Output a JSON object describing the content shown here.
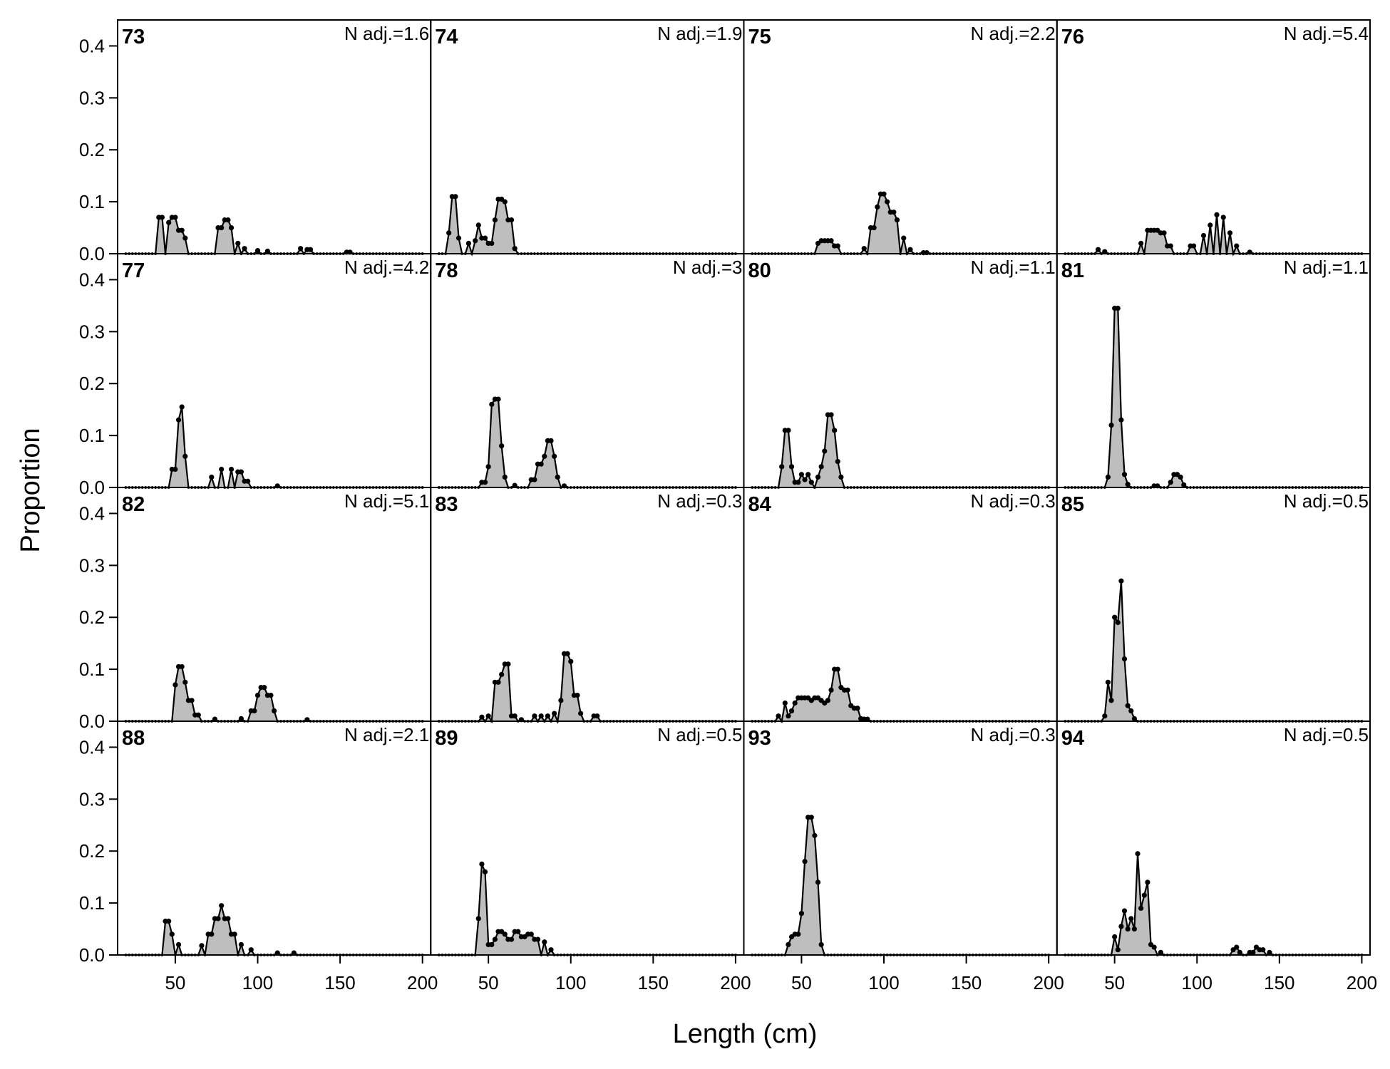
{
  "chart_data": {
    "type": "area",
    "xlabel": "Length (cm)",
    "ylabel": "Proportion",
    "xlim": [
      15,
      205
    ],
    "ylim": [
      0,
      0.45
    ],
    "x_ticks": [
      50,
      100,
      150,
      200
    ],
    "y_ticks": [
      0.0,
      0.1,
      0.2,
      0.3,
      0.4
    ],
    "x_tick_labels": [
      "50",
      "100",
      "150",
      "200"
    ],
    "y_tick_labels": [
      "0.0",
      "0.1",
      "0.2",
      "0.3",
      "0.4"
    ],
    "grid": false,
    "legend": "none",
    "fill_color": "#bebebe",
    "line_color": "#000000",
    "x_range": [
      20,
      200
    ],
    "bin_width": 2,
    "layout": {
      "rows": 4,
      "cols": 4
    },
    "panels": [
      {
        "label": "73",
        "n_adj": "N adj.=1.6",
        "peaks": [
          [
            41,
            0.07
          ],
          [
            46,
            0.06
          ],
          [
            49,
            0.07
          ],
          [
            53,
            0.045
          ],
          [
            55,
            0.03
          ],
          [
            77,
            0.05
          ],
          [
            81,
            0.065
          ],
          [
            84,
            0.05
          ],
          [
            88,
            0.02
          ],
          [
            92,
            0.01
          ],
          [
            100,
            0.006
          ],
          [
            106,
            0.005
          ],
          [
            126,
            0.01
          ],
          [
            131,
            0.008
          ],
          [
            155,
            0.003
          ]
        ]
      },
      {
        "label": "77",
        "n_adj": "N adj.=4.2",
        "peaks": [
          [
            49,
            0.035
          ],
          [
            52,
            0.13
          ],
          [
            54,
            0.155
          ],
          [
            56,
            0.06
          ],
          [
            72,
            0.02
          ],
          [
            78,
            0.035
          ],
          [
            84,
            0.035
          ],
          [
            89,
            0.03
          ],
          [
            93,
            0.012
          ],
          [
            112,
            0.003
          ]
        ]
      },
      {
        "label": "82",
        "n_adj": "N adj.=5.1",
        "peaks": [
          [
            50,
            0.07
          ],
          [
            53,
            0.105
          ],
          [
            56,
            0.075
          ],
          [
            59,
            0.04
          ],
          [
            63,
            0.012
          ],
          [
            74,
            0.004
          ],
          [
            90,
            0.005
          ],
          [
            97,
            0.02
          ],
          [
            100,
            0.05
          ],
          [
            103,
            0.065
          ],
          [
            107,
            0.05
          ],
          [
            110,
            0.02
          ],
          [
            130,
            0.003
          ]
        ]
      },
      {
        "label": "88",
        "n_adj": "N adj.=2.1",
        "peaks": [
          [
            45,
            0.065
          ],
          [
            48,
            0.04
          ],
          [
            52,
            0.02
          ],
          [
            66,
            0.018
          ],
          [
            71,
            0.04
          ],
          [
            75,
            0.07
          ],
          [
            78,
            0.095
          ],
          [
            81,
            0.07
          ],
          [
            85,
            0.04
          ],
          [
            90,
            0.02
          ],
          [
            96,
            0.01
          ],
          [
            112,
            0.004
          ],
          [
            122,
            0.004
          ]
        ]
      },
      {
        "label": "74",
        "n_adj": "N adj.=1.9",
        "peaks": [
          [
            27,
            0.04
          ],
          [
            29,
            0.11
          ],
          [
            31,
            0.03
          ],
          [
            38,
            0.02
          ],
          [
            42,
            0.025
          ],
          [
            44,
            0.055
          ],
          [
            47,
            0.03
          ],
          [
            51,
            0.02
          ],
          [
            54,
            0.065
          ],
          [
            57,
            0.105
          ],
          [
            60,
            0.1
          ],
          [
            63,
            0.065
          ],
          [
            66,
            0.01
          ]
        ]
      },
      {
        "label": "78",
        "n_adj": "N adj.=3",
        "peaks": [
          [
            47,
            0.01
          ],
          [
            50,
            0.04
          ],
          [
            53,
            0.16
          ],
          [
            55,
            0.17
          ],
          [
            57,
            0.08
          ],
          [
            60,
            0.02
          ],
          [
            66,
            0.004
          ],
          [
            77,
            0.015
          ],
          [
            81,
            0.045
          ],
          [
            84,
            0.06
          ],
          [
            87,
            0.09
          ],
          [
            89,
            0.06
          ],
          [
            92,
            0.02
          ],
          [
            96,
            0.003
          ]
        ]
      },
      {
        "label": "83",
        "n_adj": "N adj.=0.3",
        "peaks": [
          [
            46,
            0.008
          ],
          [
            50,
            0.01
          ],
          [
            55,
            0.075
          ],
          [
            57,
            0.07
          ],
          [
            59,
            0.09
          ],
          [
            61,
            0.11
          ],
          [
            65,
            0.01
          ],
          [
            70,
            0.003
          ],
          [
            78,
            0.01
          ],
          [
            82,
            0.01
          ],
          [
            86,
            0.01
          ],
          [
            90,
            0.015
          ],
          [
            94,
            0.04
          ],
          [
            97,
            0.13
          ],
          [
            100,
            0.115
          ],
          [
            103,
            0.05
          ],
          [
            106,
            0.015
          ],
          [
            115,
            0.01
          ]
        ]
      },
      {
        "label": "89",
        "n_adj": "N adj.=0.5",
        "peaks": [
          [
            44,
            0.07
          ],
          [
            46,
            0.175
          ],
          [
            48,
            0.16
          ],
          [
            51,
            0.02
          ],
          [
            54,
            0.03
          ],
          [
            57,
            0.045
          ],
          [
            60,
            0.04
          ],
          [
            63,
            0.03
          ],
          [
            67,
            0.045
          ],
          [
            71,
            0.035
          ],
          [
            75,
            0.04
          ],
          [
            79,
            0.03
          ],
          [
            84,
            0.025
          ],
          [
            88,
            0.01
          ]
        ]
      },
      {
        "label": "75",
        "n_adj": "N adj.=2.2",
        "peaks": [
          [
            60,
            0.02
          ],
          [
            63,
            0.025
          ],
          [
            67,
            0.025
          ],
          [
            71,
            0.015
          ],
          [
            88,
            0.01
          ],
          [
            93,
            0.05
          ],
          [
            96,
            0.09
          ],
          [
            99,
            0.115
          ],
          [
            102,
            0.1
          ],
          [
            105,
            0.08
          ],
          [
            108,
            0.065
          ],
          [
            112,
            0.03
          ],
          [
            116,
            0.008
          ],
          [
            125,
            0.002
          ]
        ]
      },
      {
        "label": "80",
        "n_adj": "N adj.=1.1",
        "peaks": [
          [
            38,
            0.04
          ],
          [
            40,
            0.11
          ],
          [
            42,
            0.11
          ],
          [
            44,
            0.04
          ],
          [
            47,
            0.01
          ],
          [
            50,
            0.025
          ],
          [
            52,
            0.015
          ],
          [
            54,
            0.025
          ],
          [
            56,
            0.01
          ],
          [
            61,
            0.02
          ],
          [
            63,
            0.04
          ],
          [
            65,
            0.07
          ],
          [
            67,
            0.14
          ],
          [
            69,
            0.11
          ],
          [
            71,
            0.05
          ],
          [
            73,
            0.02
          ]
        ]
      },
      {
        "label": "84",
        "n_adj": "N adj.=0.3",
        "peaks": [
          [
            36,
            0.01
          ],
          [
            40,
            0.035
          ],
          [
            42,
            0.01
          ],
          [
            45,
            0.02
          ],
          [
            47,
            0.035
          ],
          [
            49,
            0.045
          ],
          [
            51,
            0.03
          ],
          [
            53,
            0.045
          ],
          [
            55,
            0.04
          ],
          [
            57,
            0.035
          ],
          [
            59,
            0.045
          ],
          [
            61,
            0.04
          ],
          [
            63,
            0.035
          ],
          [
            65,
            0.03
          ],
          [
            67,
            0.04
          ],
          [
            69,
            0.06
          ],
          [
            71,
            0.1
          ],
          [
            73,
            0.065
          ],
          [
            75,
            0.04
          ],
          [
            77,
            0.06
          ],
          [
            79,
            0.03
          ],
          [
            81,
            0.015
          ],
          [
            83,
            0.025
          ],
          [
            86,
            0.005
          ],
          [
            89,
            0.004
          ]
        ]
      },
      {
        "label": "93",
        "n_adj": "N adj.=0.3",
        "peaks": [
          [
            43,
            0.02
          ],
          [
            45,
            0.035
          ],
          [
            47,
            0.04
          ],
          [
            49,
            0.04
          ],
          [
            51,
            0.08
          ],
          [
            53,
            0.18
          ],
          [
            55,
            0.265
          ],
          [
            57,
            0.23
          ],
          [
            59,
            0.14
          ],
          [
            61,
            0.02
          ]
        ]
      },
      {
        "label": "76",
        "n_adj": "N adj.=5.4",
        "peaks": [
          [
            40,
            0.008
          ],
          [
            44,
            0.004
          ],
          [
            66,
            0.02
          ],
          [
            71,
            0.045
          ],
          [
            75,
            0.045
          ],
          [
            79,
            0.04
          ],
          [
            83,
            0.015
          ],
          [
            97,
            0.015
          ],
          [
            104,
            0.035
          ],
          [
            108,
            0.055
          ],
          [
            112,
            0.075
          ],
          [
            116,
            0.07
          ],
          [
            120,
            0.04
          ],
          [
            124,
            0.015
          ],
          [
            132,
            0.003
          ]
        ]
      },
      {
        "label": "81",
        "n_adj": "N adj.=1.1",
        "peaks": [
          [
            47,
            0.02
          ],
          [
            49,
            0.12
          ],
          [
            51,
            0.345
          ],
          [
            53,
            0.13
          ],
          [
            55,
            0.025
          ],
          [
            57,
            0.006
          ],
          [
            75,
            0.003
          ],
          [
            85,
            0.01
          ],
          [
            87,
            0.025
          ],
          [
            89,
            0.02
          ],
          [
            91,
            0.005
          ]
        ]
      },
      {
        "label": "85",
        "n_adj": "N adj.=0.5",
        "peaks": [
          [
            44,
            0.01
          ],
          [
            46,
            0.075
          ],
          [
            48,
            0.04
          ],
          [
            50,
            0.2
          ],
          [
            52,
            0.19
          ],
          [
            54,
            0.27
          ],
          [
            56,
            0.12
          ],
          [
            58,
            0.03
          ],
          [
            60,
            0.02
          ],
          [
            62,
            0.005
          ]
        ]
      },
      {
        "label": "94",
        "n_adj": "N adj.=0.5",
        "peaks": [
          [
            50,
            0.035
          ],
          [
            52,
            0.01
          ],
          [
            54,
            0.055
          ],
          [
            56,
            0.085
          ],
          [
            58,
            0.05
          ],
          [
            60,
            0.07
          ],
          [
            62,
            0.05
          ],
          [
            64,
            0.195
          ],
          [
            66,
            0.09
          ],
          [
            68,
            0.115
          ],
          [
            70,
            0.14
          ],
          [
            72,
            0.02
          ],
          [
            74,
            0.015
          ],
          [
            78,
            0.005
          ],
          [
            122,
            0.01
          ],
          [
            124,
            0.015
          ],
          [
            126,
            0.005
          ],
          [
            133,
            0.005
          ],
          [
            136,
            0.015
          ],
          [
            139,
            0.01
          ],
          [
            144,
            0.005
          ]
        ]
      }
    ]
  }
}
